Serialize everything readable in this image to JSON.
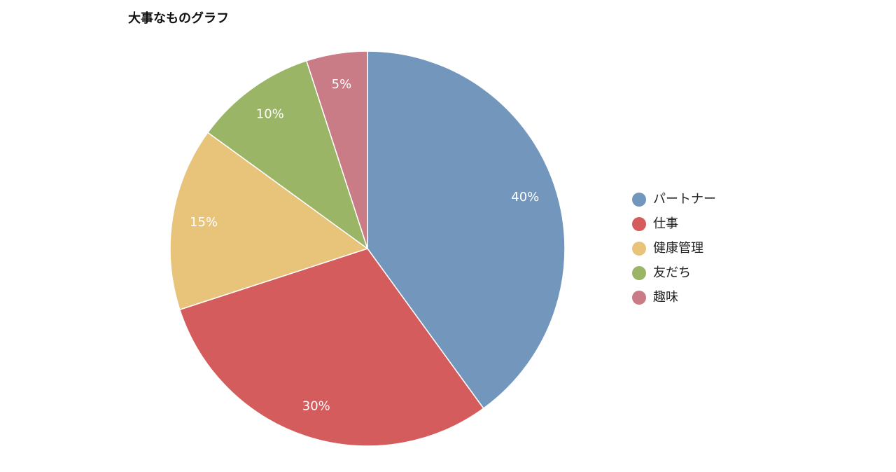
{
  "chart_data": {
    "type": "pie",
    "title": "大事なものグラフ",
    "categories": [
      "パートナー",
      "仕事",
      "健康管理",
      "友だち",
      "趣味"
    ],
    "values": [
      40,
      30,
      15,
      10,
      5
    ],
    "value_labels": [
      "40%",
      "30%",
      "15%",
      "10%",
      "5%"
    ],
    "colors": [
      "#7396bd",
      "#d45c5c",
      "#e8c47a",
      "#9ab565",
      "#c97b86"
    ],
    "legend": "right"
  }
}
